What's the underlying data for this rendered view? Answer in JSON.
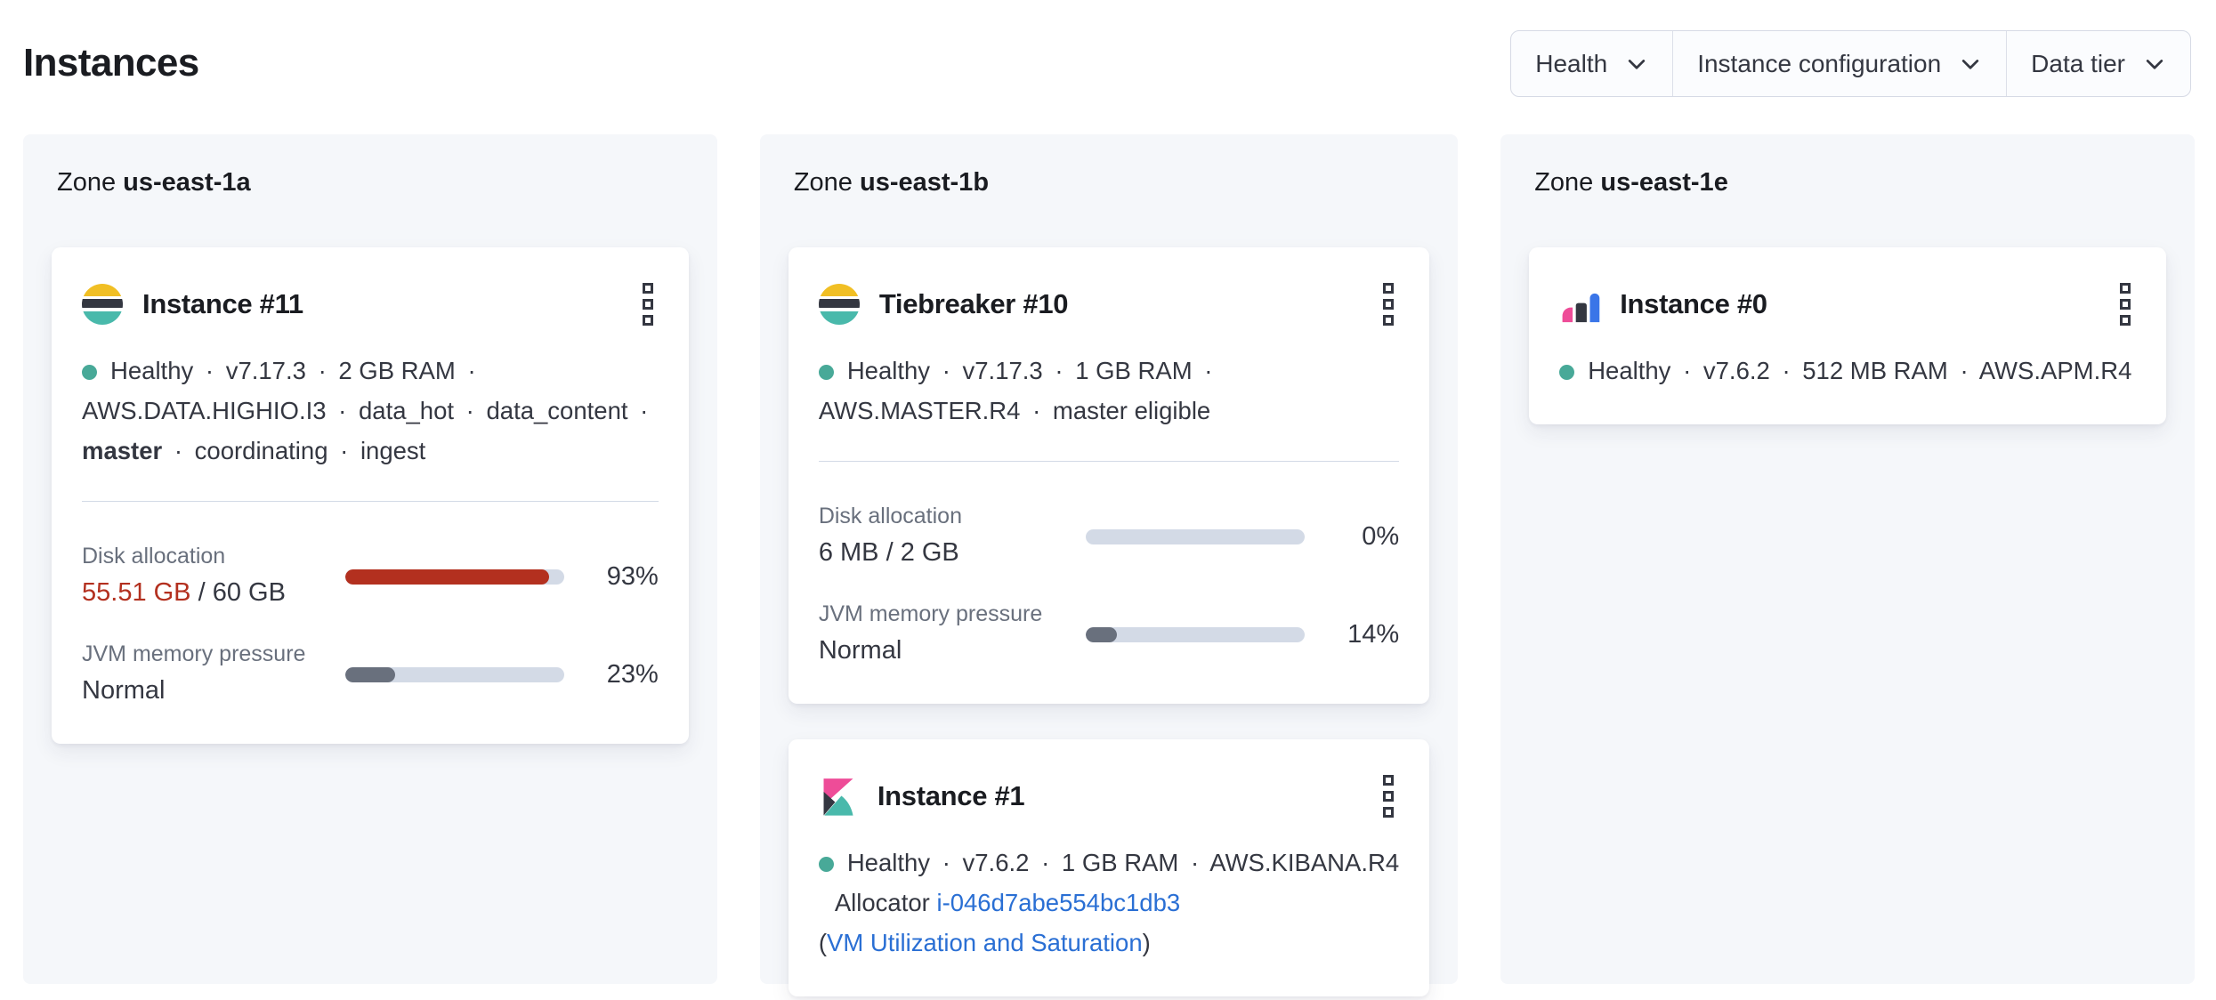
{
  "page": {
    "title": "Instances"
  },
  "filters": {
    "items": [
      {
        "label": "Health"
      },
      {
        "label": "Instance configuration"
      },
      {
        "label": "Data tier"
      }
    ]
  },
  "shared": {
    "dot_separator": "·",
    "slash_separator": "/"
  },
  "zones": [
    {
      "zone_word": "Zone",
      "name": "us-east-1a",
      "instances": [
        {
          "title": "Instance #11",
          "logo": "elasticsearch",
          "health": "Healthy",
          "version": "v7.17.3",
          "ram": "2 GB RAM",
          "configuration": "AWS.DATA.HIGHIO.I3",
          "roles": [
            "data_hot",
            "data_content",
            "master",
            "coordinating",
            "ingest"
          ],
          "metrics": {
            "disk": {
              "label": "Disk allocation",
              "used": "55.51 GB",
              "total": "60 GB",
              "percent": 93,
              "percent_label": "93%",
              "status": "danger"
            },
            "jvm": {
              "label": "JVM memory pressure",
              "value_text": "Normal",
              "percent": 23,
              "percent_label": "23%",
              "status": "normal"
            }
          }
        }
      ]
    },
    {
      "zone_word": "Zone",
      "name": "us-east-1b",
      "instances": [
        {
          "title": "Tiebreaker #10",
          "logo": "elasticsearch",
          "health": "Healthy",
          "version": "v7.17.3",
          "ram": "1 GB RAM",
          "configuration": "AWS.MASTER.R4",
          "roles": [
            "master eligible"
          ],
          "metrics": {
            "disk": {
              "label": "Disk allocation",
              "used": "6 MB",
              "total": "2 GB",
              "percent": 0,
              "percent_label": "0%",
              "status": "normal"
            },
            "jvm": {
              "label": "JVM memory pressure",
              "value_text": "Normal",
              "percent": 14,
              "percent_label": "14%",
              "status": "normal"
            }
          }
        },
        {
          "title": "Instance #1",
          "logo": "kibana",
          "health": "Healthy",
          "version": "v7.6.2",
          "ram": "1 GB RAM",
          "configuration": "AWS.KIBANA.R4",
          "allocator": {
            "label": "Allocator",
            "id": "i-046d7abe554bc1db3"
          },
          "vm_link": {
            "open_paren": "(",
            "label": "VM Utilization and Saturation",
            "close_paren": ")"
          }
        }
      ]
    },
    {
      "zone_word": "Zone",
      "name": "us-east-1e",
      "instances": [
        {
          "title": "Instance #0",
          "logo": "apm",
          "health": "Healthy",
          "version": "v7.6.2",
          "ram": "512 MB RAM",
          "configuration": "AWS.APM.R4"
        }
      ]
    }
  ],
  "colors": {
    "danger": "#B3301F",
    "neutral_bar": "#69707D",
    "bar_track": "#D3DAE6",
    "link": "#2A6FD4",
    "health_dot": "#48A998",
    "title_text": "#1A1C21",
    "body_text": "#343741",
    "subdued_text": "#69707D",
    "panel_bg": "#F5F7FA",
    "card_bg": "#FFFFFF",
    "border": "#D3DAE6",
    "es_logo_yellow": "#F1BF24",
    "es_logo_dark": "#343741",
    "es_logo_teal": "#49B9AB",
    "kibana_pink": "#EE4C98",
    "apm_blue": "#3A75E8"
  }
}
